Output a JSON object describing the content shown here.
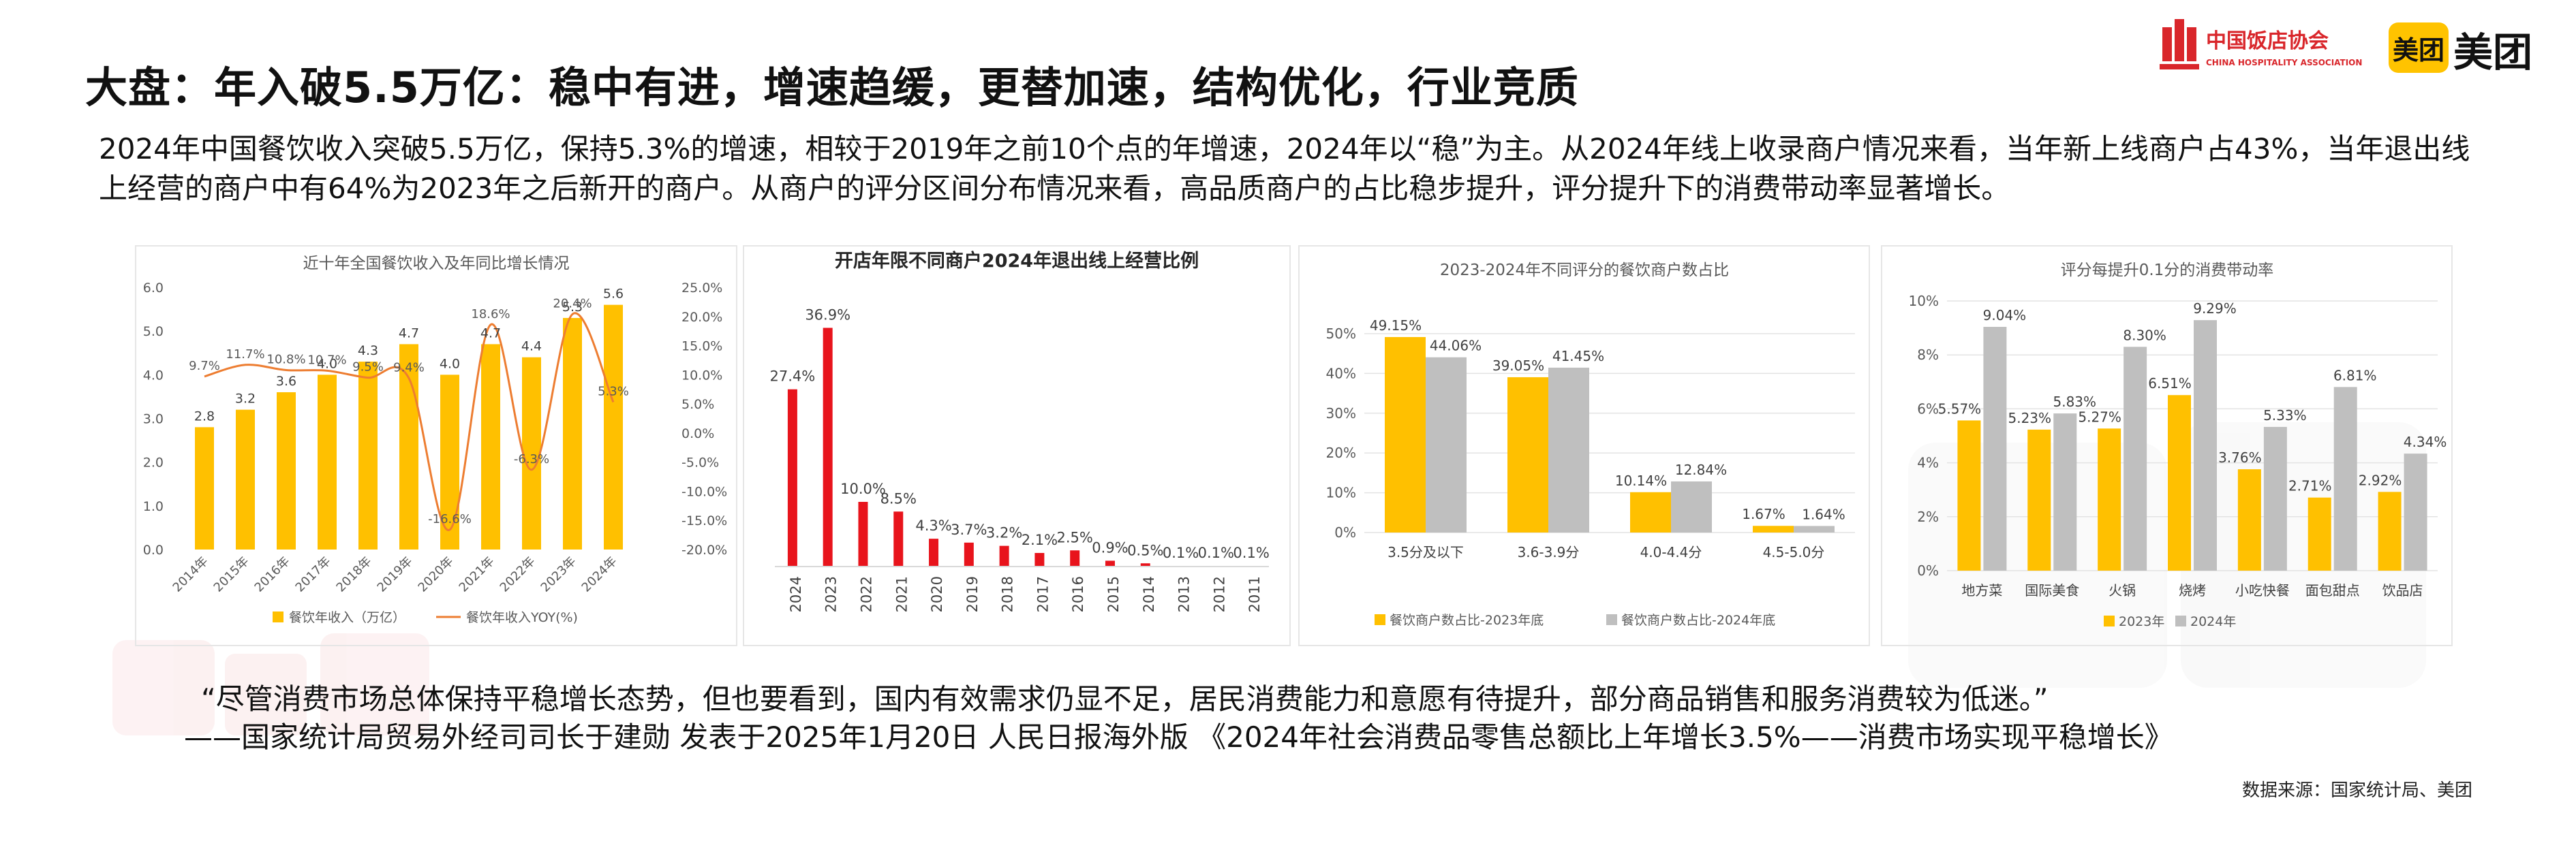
{
  "header": {
    "title": "大盘：年入破5.5万亿：稳中有进，增速趋缓，更替加速，结构优化，行业竞质",
    "cha_logo_cn": "中国饭店协会",
    "cha_logo_en": "CHINA HOSPITALITY ASSOCIATION",
    "meituan_badge": "美团",
    "meituan_word": "美团"
  },
  "intro": "2024年中国餐饮收入突破5.5万亿，保持5.3%的增速，相较于2019年之前10个点的年增速，2024年以“稳”为主。从2024年线上收录商户情况来看，当年新上线商户占43%，当年退出线上经营的商户中有64%为2023年之后新开的商户。从商户的评分区间分布情况来看，高品质商户的占比稳步提升，评分提升下的消费带动率显著增长。",
  "quote": "“尽管消费市场总体保持平稳增长态势，但也要看到，国内有效需求仍显不足，居民消费能力和意愿有待提升，部分商品销售和服务消费较为低迷。”",
  "quote_source": "——国家统计局贸易外经司司长于建勋  发表于2025年1月20日 人民日报海外版   《2024年社会消费品零售总额比上年增长3.5%——消费市场实现平稳增长》",
  "data_source": "数据来源：国家统计局、美团",
  "colors": {
    "gold": "#ffc000",
    "red": "#e8141c",
    "gray": "#bfbfbf",
    "orange_line": "#ed7d31"
  },
  "chart_data": [
    {
      "type": "bar",
      "title": "近十年全国餐饮收入及年同比增长情况",
      "categories": [
        "2014年",
        "2015年",
        "2016年",
        "2017年",
        "2018年",
        "2019年",
        "2020年",
        "2021年",
        "2022年",
        "2023年",
        "2024年"
      ],
      "series": [
        {
          "name": "餐饮年收入（万亿）",
          "type": "bar",
          "axis": "left",
          "values": [
            2.8,
            3.2,
            3.6,
            4.0,
            4.3,
            4.7,
            4.0,
            4.7,
            4.4,
            5.3,
            5.6
          ],
          "labels": [
            "2.8",
            "3.2",
            "3.6",
            "4.0",
            "4.3",
            "4.7",
            "4.0",
            "4.7",
            "4.4",
            "5.3",
            "5.6"
          ]
        },
        {
          "name": "餐饮年收入YOY(%)",
          "type": "line",
          "axis": "right",
          "values": [
            9.7,
            11.7,
            10.8,
            10.7,
            9.5,
            9.4,
            -16.6,
            18.6,
            -6.3,
            20.4,
            5.3
          ],
          "labels": [
            "9.7%",
            "11.7%",
            "10.8%",
            "10.7%",
            "9.5%",
            "9.4%",
            "-16.6%",
            "18.6%",
            "-6.3%",
            "20.4%",
            "5.3%"
          ]
        }
      ],
      "ylim": [
        0,
        6
      ],
      "yticks": [
        "0.0",
        "1.0",
        "2.0",
        "3.0",
        "4.0",
        "5.0",
        "6.0"
      ],
      "y2lim": [
        -20,
        25
      ],
      "y2ticks": [
        "-20.0%",
        "-15.0%",
        "-10.0%",
        "-5.0%",
        "0.0%",
        "5.0%",
        "10.0%",
        "15.0%",
        "20.0%",
        "25.0%"
      ]
    },
    {
      "type": "bar",
      "title": "开店年限不同商户2024年退出线上经营比例",
      "categories": [
        "2024",
        "2023",
        "2022",
        "2021",
        "2020",
        "2019",
        "2018",
        "2017",
        "2016",
        "2015",
        "2014",
        "2013",
        "2012",
        "2011"
      ],
      "values": [
        27.4,
        36.9,
        10.0,
        8.5,
        4.3,
        3.7,
        3.2,
        2.1,
        2.5,
        0.9,
        0.5,
        0.1,
        0.1,
        0.1
      ],
      "labels": [
        "27.4%",
        "36.9%",
        "10.0%",
        "8.5%",
        "4.3%",
        "3.7%",
        "3.2%",
        "2.1%",
        "2.5%",
        "0.9%",
        "0.5%",
        "0.1%",
        "0.1%",
        "0.1%"
      ],
      "ylim": [
        0,
        40
      ]
    },
    {
      "type": "bar",
      "title": "2023-2024年不同评分的餐饮商户数占比",
      "categories": [
        "3.5分及以下",
        "3.6-3.9分",
        "4.0-4.4分",
        "4.5-5.0分"
      ],
      "series": [
        {
          "name": "餐饮商户数占比-2023年底",
          "values": [
            49.15,
            39.05,
            10.14,
            1.67
          ],
          "labels": [
            "49.15%",
            "39.05%",
            "10.14%",
            "1.67%"
          ]
        },
        {
          "name": "餐饮商户数占比-2024年底",
          "values": [
            44.06,
            41.45,
            12.84,
            1.64
          ],
          "labels": [
            "44.06%",
            "41.45%",
            "12.84%",
            "1.64%"
          ]
        }
      ],
      "ylim": [
        0,
        50
      ],
      "yticks": [
        "0%",
        "10%",
        "20%",
        "30%",
        "40%",
        "50%"
      ]
    },
    {
      "type": "bar",
      "title": "评分每提升0.1分的消费带动率",
      "categories": [
        "地方菜",
        "国际美食",
        "火锅",
        "烧烤",
        "小吃快餐",
        "面包甜点",
        "饮品店"
      ],
      "series": [
        {
          "name": "2023年",
          "values": [
            5.57,
            5.23,
            5.27,
            6.51,
            3.76,
            2.71,
            2.92
          ],
          "labels": [
            "5.57%",
            "5.23%",
            "5.27%",
            "6.51%",
            "3.76%",
            "2.71%",
            "2.92%"
          ]
        },
        {
          "name": "2024年",
          "values": [
            9.04,
            5.83,
            8.3,
            9.29,
            5.33,
            6.81,
            4.34
          ],
          "labels": [
            "9.04%",
            "5.83%",
            "8.30%",
            "9.29%",
            "5.33%",
            "6.81%",
            "4.34%"
          ]
        }
      ],
      "ylim": [
        0,
        10
      ],
      "yticks": [
        "0%",
        "2%",
        "4%",
        "6%",
        "8%",
        "10%"
      ]
    }
  ]
}
